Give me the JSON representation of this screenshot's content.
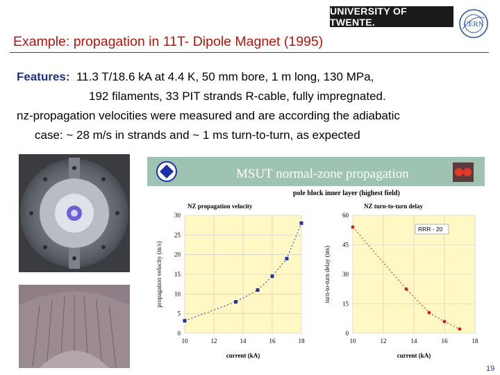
{
  "header": {
    "university_logo_text": "UNIVERSITY OF TWENTE.",
    "cern_logo_text": "CERN"
  },
  "title": "Example: propagation in 11T- Dipole Magnet (1995)",
  "features": {
    "label": "Features:",
    "line1": "11.3 T/18.6 kA at 4.4 K, 50 mm bore, 1 m long, 130 MPa,",
    "line2": "192 filaments,  33 PIT strands R-cable, fully impregnated.",
    "line3": "nz-propagation velocities were measured and are according the adiabatic",
    "line4": "case: ~ 28 m/s in strands and ~ 1 ms turn-to-turn, as expected"
  },
  "figure": {
    "banner_title": "MSUT  normal-zone propagation",
    "subtitle": "pole block inner layer (highest field)",
    "colors": {
      "banner": "#9ec3b2",
      "plot_bg": "#fff8c4",
      "marker_left": "#1e2fa8",
      "marker_right": "#cc1b10"
    }
  },
  "chart_data": [
    {
      "type": "scatter",
      "title": "NZ propagation velocity",
      "xlabel": "current (kA)",
      "ylabel": "propagation velocity (m/s)",
      "xlim": [
        10,
        18
      ],
      "ylim": [
        0,
        30
      ],
      "xticks": [
        "10",
        "12",
        "14",
        "16",
        "18"
      ],
      "yticks": [
        "0",
        "5",
        "10",
        "15",
        "20",
        "25",
        "30"
      ],
      "grid": true,
      "series": [
        {
          "values": [
            [
              10.0,
              3.2
            ],
            [
              13.5,
              8.0
            ],
            [
              15.0,
              11.0
            ],
            [
              16.0,
              14.5
            ],
            [
              17.0,
              19.0
            ],
            [
              18.0,
              28.0
            ]
          ]
        }
      ]
    },
    {
      "type": "scatter",
      "title": "NZ turn-to-turn delay",
      "xlabel": "current (kA)",
      "ylabel": "turn-to-turn delay (ms)",
      "xlim": [
        10,
        18
      ],
      "ylim": [
        0,
        60
      ],
      "xticks": [
        "10",
        "12",
        "14",
        "16",
        "18"
      ],
      "yticks": [
        "0",
        "15",
        "30",
        "45",
        "60"
      ],
      "grid": true,
      "legend_text": "RRR - 20",
      "series": [
        {
          "values": [
            [
              10.0,
              54.0
            ],
            [
              13.5,
              22.5
            ],
            [
              15.0,
              10.5
            ],
            [
              16.0,
              6.0
            ],
            [
              17.0,
              2.2
            ]
          ]
        }
      ]
    }
  ],
  "page_number": "19"
}
